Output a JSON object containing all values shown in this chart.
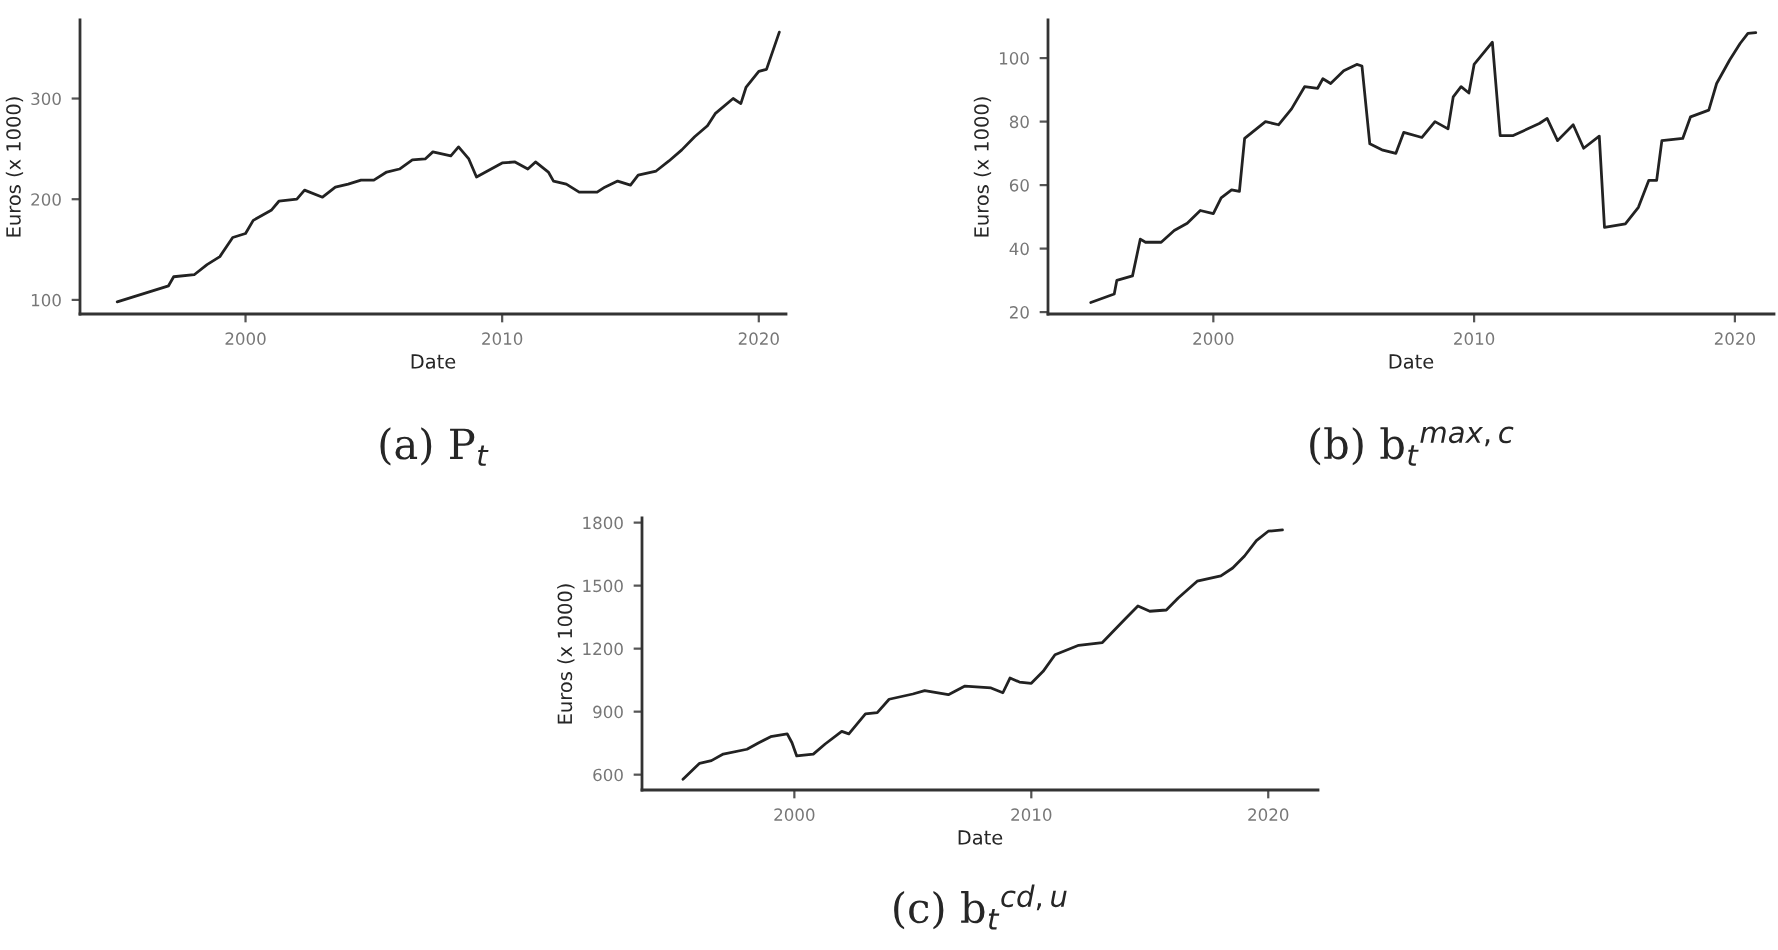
{
  "chart_data": [
    {
      "type": "line",
      "title": "(a) P$_{t}$",
      "xlabel": "Date",
      "ylabel": "Euros (x 1000)",
      "xlim": [
        1993.55,
        2021.06
      ],
      "xticks": [
        2000,
        2010,
        2020
      ],
      "ylim": [
        86,
        378
      ],
      "yticks": [
        100,
        200,
        300
      ],
      "grid": false,
      "legend": false,
      "series": [
        {
          "color": "#222222",
          "x": [
            1995.0,
            1996,
            1997,
            1997.2,
            1998,
            1998.5,
            1999,
            1999.5,
            2000,
            2000.3,
            2001,
            2001.3,
            2002,
            2002.3,
            2003,
            2003.5,
            2004,
            2004.5,
            2005,
            2005.5,
            2006,
            2006.5,
            2007,
            2007.3,
            2008,
            2008.3,
            2008.7,
            2009.0,
            2009.5,
            2010,
            2010.5,
            2011,
            2011.3,
            2011.8,
            2012,
            2012.5,
            2013,
            2013.7,
            2014,
            2014.5,
            2015,
            2015.3,
            2016,
            2016.5,
            2017,
            2017.5,
            2018,
            2018.3,
            2019,
            2019.3,
            2019.5,
            2020,
            2020.3,
            2020.8
          ],
          "values": [
            98,
            106,
            114,
            123,
            125,
            135,
            143,
            162,
            166,
            179,
            189,
            198,
            200,
            209,
            202,
            212,
            215,
            219,
            219,
            227,
            230,
            239,
            240,
            247,
            243,
            252,
            240,
            222,
            229,
            236,
            237,
            230,
            237,
            227,
            218,
            215,
            207,
            207,
            212,
            218,
            214,
            224,
            228,
            238,
            249,
            262,
            273,
            285,
            300,
            295,
            311,
            327,
            329,
            366
          ]
        }
      ]
    },
    {
      "type": "line",
      "title": "(b) b$_{t}$$^{max,c}$",
      "xlabel": "Date",
      "ylabel": "Euros (x 1000)",
      "xlim": [
        1993.66,
        2021.5
      ],
      "xticks": [
        2000,
        2010,
        2020
      ],
      "ylim": [
        19.4,
        112
      ],
      "yticks": [
        20,
        40,
        60,
        80,
        100
      ],
      "grid": false,
      "legend": false,
      "series": [
        {
          "color": "#222222",
          "x": [
            1995.3,
            1996.2,
            1996.3,
            1996.9,
            1997.2,
            1997.4,
            1998,
            1998.5,
            1999,
            1999.5,
            2000,
            2000.3,
            2000.7,
            2001.0,
            2001.2,
            2002,
            2002.5,
            2003,
            2003.5,
            2004,
            2004.2,
            2004.5,
            2005,
            2005.5,
            2005.7,
            2006,
            2006.5,
            2007,
            2007.3,
            2008,
            2008.5,
            2009,
            2009.2,
            2009.5,
            2009.8,
            2010,
            2010.7,
            2011.0,
            2011.5,
            2012.5,
            2012.8,
            2013.2,
            2013.8,
            2014.2,
            2014.8,
            2015.0,
            2015.8,
            2016.3,
            2016.7,
            2017,
            2017.2,
            2018,
            2018.3,
            2019,
            2019.3,
            2019.8,
            2020.2,
            2020.5,
            2020.8
          ],
          "values": [
            23,
            25.7,
            30,
            31.4,
            43,
            42,
            42,
            45.7,
            48,
            52,
            51,
            56,
            58.5,
            58,
            74.7,
            80,
            79,
            84,
            91,
            90.5,
            93.5,
            92,
            96,
            98,
            97.5,
            73,
            71,
            70,
            76.6,
            75,
            80,
            77.7,
            87.8,
            91,
            89,
            98,
            105,
            75.6,
            75.6,
            79.4,
            81,
            74,
            79,
            71.6,
            75.4,
            46.7,
            47.8,
            53,
            61.5,
            61.5,
            74,
            74.7,
            81.5,
            83.6,
            92,
            99.4,
            104.6,
            107.8,
            108
          ]
        }
      ]
    },
    {
      "type": "line",
      "title": "(c) b$_{t}$$^{cd,u}$",
      "xlabel": "Date",
      "ylabel": "Euros (x 1000)",
      "xlim": [
        1993.57,
        2022.1
      ],
      "xticks": [
        2000,
        2010,
        2020
      ],
      "ylim": [
        527,
        1822
      ],
      "yticks": [
        600,
        900,
        1200,
        1500,
        1800
      ],
      "grid": false,
      "legend": false,
      "series": [
        {
          "color": "#222222",
          "x": [
            1995.3,
            1996.0,
            1996.5,
            1997,
            1998,
            1998.5,
            1999,
            1999.7,
            1999.9,
            2000.1,
            2000.8,
            2001.3,
            2002,
            2002.3,
            2003,
            2003.5,
            2004,
            2005,
            2005.5,
            2006.5,
            2007.2,
            2008.3,
            2008.8,
            2009.1,
            2009.5,
            2010,
            2010.5,
            2011,
            2012,
            2013,
            2014,
            2014.5,
            2015,
            2015.7,
            2016.2,
            2017,
            2018,
            2018.5,
            2019,
            2019.5,
            2020,
            2020.6
          ],
          "values": [
            578,
            654,
            667,
            698,
            721,
            752,
            781,
            794,
            752,
            689,
            698,
            746,
            806,
            794,
            889,
            895,
            959,
            984,
            1000,
            981,
            1022,
            1013,
            990,
            1060,
            1041,
            1035,
            1092,
            1171,
            1216,
            1229,
            1346,
            1403,
            1378,
            1384,
            1441,
            1521,
            1546,
            1584,
            1641,
            1714,
            1759,
            1765
          ]
        }
      ]
    }
  ]
}
